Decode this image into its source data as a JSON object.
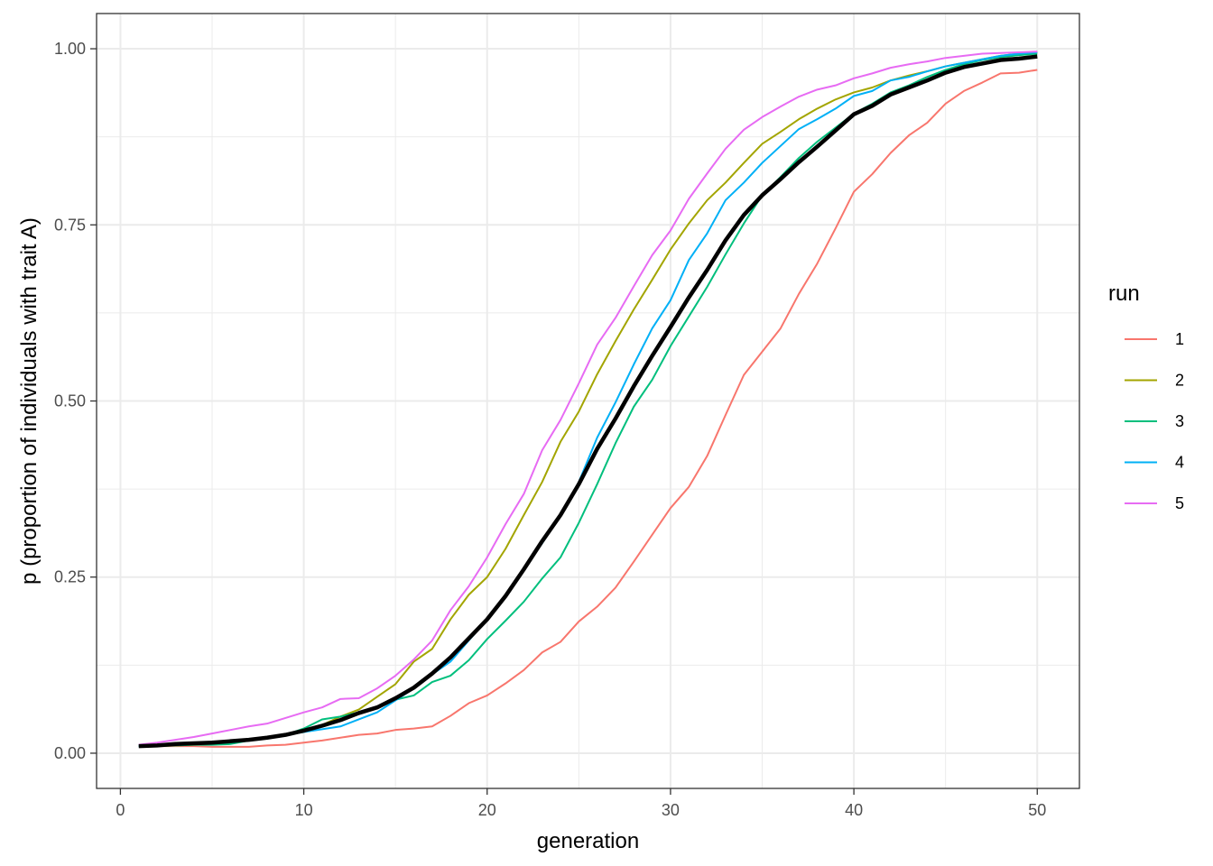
{
  "chart_data": {
    "type": "line",
    "xlabel": "generation",
    "ylabel": "p (proportion of individuals with trait A)",
    "xlim": [
      -1.3,
      52.3
    ],
    "ylim": [
      -0.05,
      1.05
    ],
    "x_ticks": [
      0,
      10,
      20,
      30,
      40,
      50
    ],
    "x_tick_labels": [
      "0",
      "10",
      "20",
      "30",
      "40",
      "50"
    ],
    "y_ticks": [
      0,
      0.25,
      0.5,
      0.75,
      1.0
    ],
    "y_tick_labels": [
      "0.00",
      "0.25",
      "0.50",
      "0.75",
      "1.00"
    ],
    "grid": true,
    "legend": {
      "title": "run",
      "position": "right"
    },
    "x": [
      1,
      2,
      3,
      4,
      5,
      6,
      7,
      8,
      9,
      10,
      11,
      12,
      13,
      14,
      15,
      16,
      17,
      18,
      19,
      20,
      21,
      22,
      23,
      24,
      25,
      26,
      27,
      28,
      29,
      30,
      31,
      32,
      33,
      34,
      35,
      36,
      37,
      38,
      39,
      40,
      41,
      42,
      43,
      44,
      45,
      46,
      47,
      48,
      49,
      50
    ],
    "series": [
      {
        "name": "1",
        "color": "#F8766D",
        "values": [
          0.01,
          0.01,
          0.01,
          0.01,
          0.009,
          0.009,
          0.009,
          0.011,
          0.012,
          0.015,
          0.018,
          0.022,
          0.026,
          0.028,
          0.033,
          0.035,
          0.038,
          0.053,
          0.071,
          0.082,
          0.099,
          0.118,
          0.143,
          0.158,
          0.187,
          0.208,
          0.235,
          0.272,
          0.31,
          0.348,
          0.378,
          0.422,
          0.48,
          0.537,
          0.57,
          0.603,
          0.652,
          0.695,
          0.745,
          0.797,
          0.822,
          0.852,
          0.877,
          0.895,
          0.922,
          0.94,
          0.952,
          0.965,
          0.966,
          0.97
        ]
      },
      {
        "name": "2",
        "color": "#A3A500",
        "values": [
          0.01,
          0.01,
          0.011,
          0.012,
          0.013,
          0.014,
          0.018,
          0.022,
          0.026,
          0.03,
          0.04,
          0.052,
          0.062,
          0.08,
          0.098,
          0.13,
          0.148,
          0.19,
          0.225,
          0.25,
          0.29,
          0.338,
          0.385,
          0.442,
          0.485,
          0.538,
          0.585,
          0.63,
          0.672,
          0.715,
          0.752,
          0.785,
          0.81,
          0.838,
          0.865,
          0.882,
          0.9,
          0.915,
          0.928,
          0.938,
          0.945,
          0.955,
          0.962,
          0.968,
          0.975,
          0.98,
          0.985,
          0.99,
          0.993,
          0.995
        ]
      },
      {
        "name": "3",
        "color": "#00BF7D",
        "values": [
          0.01,
          0.01,
          0.011,
          0.012,
          0.012,
          0.013,
          0.018,
          0.022,
          0.026,
          0.035,
          0.048,
          0.052,
          0.058,
          0.065,
          0.076,
          0.082,
          0.101,
          0.11,
          0.132,
          0.162,
          0.188,
          0.215,
          0.248,
          0.278,
          0.327,
          0.382,
          0.44,
          0.492,
          0.53,
          0.578,
          0.62,
          0.662,
          0.708,
          0.752,
          0.792,
          0.818,
          0.845,
          0.868,
          0.888,
          0.908,
          0.922,
          0.938,
          0.948,
          0.96,
          0.97,
          0.978,
          0.984,
          0.988,
          0.991,
          0.993
        ]
      },
      {
        "name": "4",
        "color": "#00B0F6",
        "values": [
          0.01,
          0.011,
          0.012,
          0.014,
          0.015,
          0.017,
          0.02,
          0.023,
          0.026,
          0.03,
          0.034,
          0.038,
          0.048,
          0.058,
          0.075,
          0.092,
          0.112,
          0.13,
          0.16,
          0.19,
          0.225,
          0.262,
          0.298,
          0.338,
          0.385,
          0.448,
          0.498,
          0.552,
          0.603,
          0.643,
          0.7,
          0.738,
          0.785,
          0.81,
          0.838,
          0.862,
          0.886,
          0.9,
          0.915,
          0.933,
          0.94,
          0.955,
          0.96,
          0.968,
          0.975,
          0.98,
          0.985,
          0.99,
          0.993,
          0.995
        ]
      },
      {
        "name": "5",
        "color": "#E76BF3",
        "values": [
          0.012,
          0.015,
          0.019,
          0.023,
          0.028,
          0.033,
          0.038,
          0.042,
          0.05,
          0.058,
          0.065,
          0.077,
          0.078,
          0.092,
          0.11,
          0.133,
          0.16,
          0.203,
          0.237,
          0.278,
          0.325,
          0.368,
          0.43,
          0.473,
          0.525,
          0.58,
          0.618,
          0.663,
          0.707,
          0.742,
          0.787,
          0.823,
          0.858,
          0.885,
          0.903,
          0.918,
          0.932,
          0.942,
          0.948,
          0.958,
          0.965,
          0.973,
          0.978,
          0.982,
          0.987,
          0.99,
          0.993,
          0.994,
          0.995,
          0.996
        ]
      },
      {
        "name": "",
        "color": "#000000",
        "values": [
          0.01,
          0.011,
          0.013,
          0.014,
          0.015,
          0.017,
          0.019,
          0.022,
          0.026,
          0.032,
          0.039,
          0.047,
          0.057,
          0.065,
          0.078,
          0.093,
          0.113,
          0.136,
          0.163,
          0.19,
          0.223,
          0.261,
          0.301,
          0.338,
          0.382,
          0.432,
          0.475,
          0.521,
          0.564,
          0.605,
          0.647,
          0.686,
          0.728,
          0.764,
          0.792,
          0.815,
          0.839,
          0.861,
          0.884,
          0.907,
          0.919,
          0.935,
          0.945,
          0.955,
          0.966,
          0.974,
          0.979,
          0.984,
          0.986,
          0.989
        ]
      }
    ]
  }
}
